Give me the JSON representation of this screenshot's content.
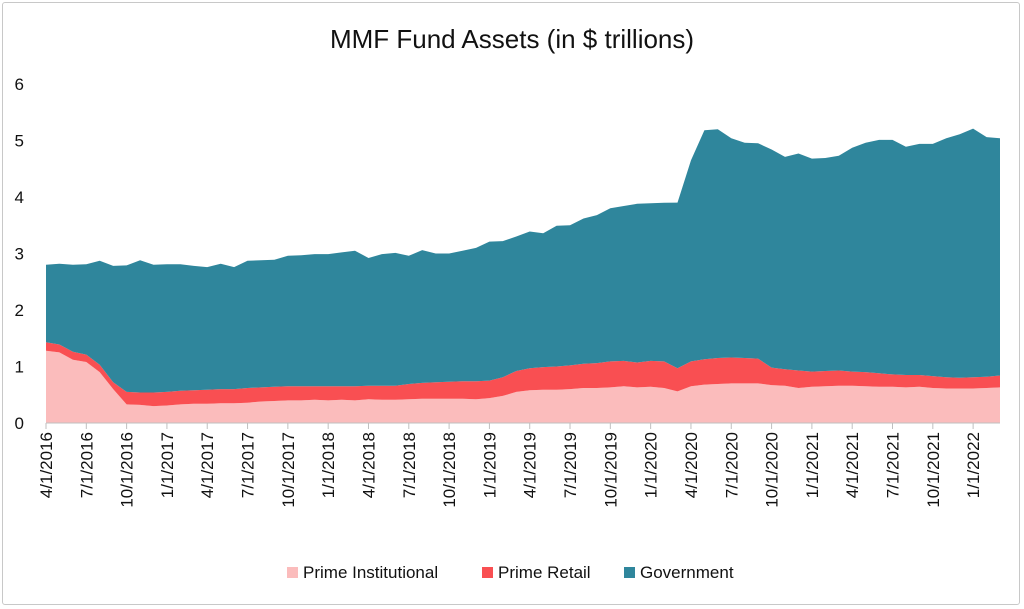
{
  "chart_data": {
    "type": "area",
    "stacked": true,
    "title": "MMF Fund Assets (in $ trillions)",
    "xlabel": "",
    "ylabel": "",
    "ylim": [
      0,
      6
    ],
    "yticks": [
      0,
      1,
      2,
      3,
      4,
      5,
      6
    ],
    "xtick_labels": [
      "4/1/2016",
      "7/1/2016",
      "10/1/2016",
      "1/1/2017",
      "4/1/2017",
      "7/1/2017",
      "10/1/2017",
      "1/1/2018",
      "4/1/2018",
      "7/1/2018",
      "10/1/2018",
      "1/1/2019",
      "4/1/2019",
      "7/1/2019",
      "10/1/2019",
      "1/1/2020",
      "4/1/2020",
      "7/1/2020",
      "10/1/2020",
      "1/1/2021",
      "4/1/2021",
      "7/1/2021",
      "10/1/2021",
      "1/1/2022"
    ],
    "x": [
      "4/1/2016",
      "5/1/2016",
      "6/1/2016",
      "7/1/2016",
      "8/1/2016",
      "9/1/2016",
      "10/1/2016",
      "11/1/2016",
      "12/1/2016",
      "1/1/2017",
      "2/1/2017",
      "3/1/2017",
      "4/1/2017",
      "5/1/2017",
      "6/1/2017",
      "7/1/2017",
      "8/1/2017",
      "9/1/2017",
      "10/1/2017",
      "11/1/2017",
      "12/1/2017",
      "1/1/2018",
      "2/1/2018",
      "3/1/2018",
      "4/1/2018",
      "5/1/2018",
      "6/1/2018",
      "7/1/2018",
      "8/1/2018",
      "9/1/2018",
      "10/1/2018",
      "11/1/2018",
      "12/1/2018",
      "1/1/2019",
      "2/1/2019",
      "3/1/2019",
      "4/1/2019",
      "5/1/2019",
      "6/1/2019",
      "7/1/2019",
      "8/1/2019",
      "9/1/2019",
      "10/1/2019",
      "11/1/2019",
      "12/1/2019",
      "1/1/2020",
      "2/1/2020",
      "3/1/2020",
      "4/1/2020",
      "5/1/2020",
      "6/1/2020",
      "7/1/2020",
      "8/1/2020",
      "9/1/2020",
      "10/1/2020",
      "11/1/2020",
      "12/1/2020",
      "1/1/2021",
      "2/1/2021",
      "3/1/2021",
      "4/1/2021",
      "5/1/2021",
      "6/1/2021",
      "7/1/2021",
      "8/1/2021",
      "9/1/2021",
      "10/1/2021",
      "11/1/2021",
      "12/1/2021",
      "1/1/2022",
      "2/1/2022",
      "3/1/2022"
    ],
    "series": [
      {
        "name": "Prime Institutional",
        "color": "#fbbcbc",
        "values": [
          1.28,
          1.25,
          1.12,
          1.08,
          0.9,
          0.6,
          0.33,
          0.32,
          0.3,
          0.31,
          0.33,
          0.34,
          0.34,
          0.35,
          0.35,
          0.36,
          0.38,
          0.39,
          0.4,
          0.4,
          0.41,
          0.4,
          0.41,
          0.4,
          0.42,
          0.41,
          0.41,
          0.42,
          0.43,
          0.43,
          0.43,
          0.43,
          0.42,
          0.44,
          0.48,
          0.55,
          0.58,
          0.59,
          0.59,
          0.6,
          0.62,
          0.62,
          0.63,
          0.65,
          0.63,
          0.64,
          0.62,
          0.56,
          0.65,
          0.68,
          0.69,
          0.7,
          0.7,
          0.7,
          0.67,
          0.66,
          0.62,
          0.64,
          0.65,
          0.66,
          0.66,
          0.65,
          0.64,
          0.64,
          0.63,
          0.64,
          0.62,
          0.61,
          0.61,
          0.61,
          0.62,
          0.63
        ]
      },
      {
        "name": "Prime Retail",
        "color": "#f94f52",
        "values": [
          0.15,
          0.14,
          0.14,
          0.13,
          0.13,
          0.12,
          0.22,
          0.22,
          0.24,
          0.24,
          0.24,
          0.24,
          0.25,
          0.25,
          0.25,
          0.26,
          0.25,
          0.25,
          0.25,
          0.25,
          0.24,
          0.25,
          0.24,
          0.25,
          0.24,
          0.25,
          0.25,
          0.27,
          0.28,
          0.29,
          0.3,
          0.31,
          0.32,
          0.31,
          0.33,
          0.37,
          0.39,
          0.4,
          0.41,
          0.42,
          0.43,
          0.44,
          0.46,
          0.45,
          0.44,
          0.46,
          0.47,
          0.41,
          0.44,
          0.45,
          0.46,
          0.46,
          0.45,
          0.44,
          0.31,
          0.29,
          0.31,
          0.27,
          0.27,
          0.27,
          0.25,
          0.25,
          0.24,
          0.22,
          0.22,
          0.21,
          0.21,
          0.2,
          0.19,
          0.2,
          0.2,
          0.21
        ]
      },
      {
        "name": "Government",
        "color": "#2f869c",
        "values": [
          1.37,
          1.43,
          1.54,
          1.6,
          1.84,
          2.06,
          2.24,
          2.34,
          2.26,
          2.26,
          2.24,
          2.2,
          2.17,
          2.22,
          2.16,
          2.25,
          2.25,
          2.25,
          2.31,
          2.32,
          2.34,
          2.34,
          2.37,
          2.4,
          2.26,
          2.33,
          2.35,
          2.27,
          2.35,
          2.28,
          2.27,
          2.31,
          2.36,
          2.46,
          2.41,
          2.38,
          2.42,
          2.37,
          2.49,
          2.48,
          2.57,
          2.62,
          2.71,
          2.74,
          2.81,
          2.79,
          2.81,
          2.93,
          3.56,
          4.05,
          4.05,
          3.88,
          3.81,
          3.81,
          3.86,
          3.76,
          3.84,
          3.77,
          3.77,
          3.8,
          3.96,
          4.06,
          4.13,
          4.15,
          4.04,
          4.09,
          4.11,
          4.23,
          4.31,
          4.4,
          4.24,
          4.2
        ]
      }
    ],
    "legend": [
      "Prime Institutional",
      "Prime Retail",
      "Government"
    ],
    "legend_position": "bottom",
    "grid": false
  }
}
